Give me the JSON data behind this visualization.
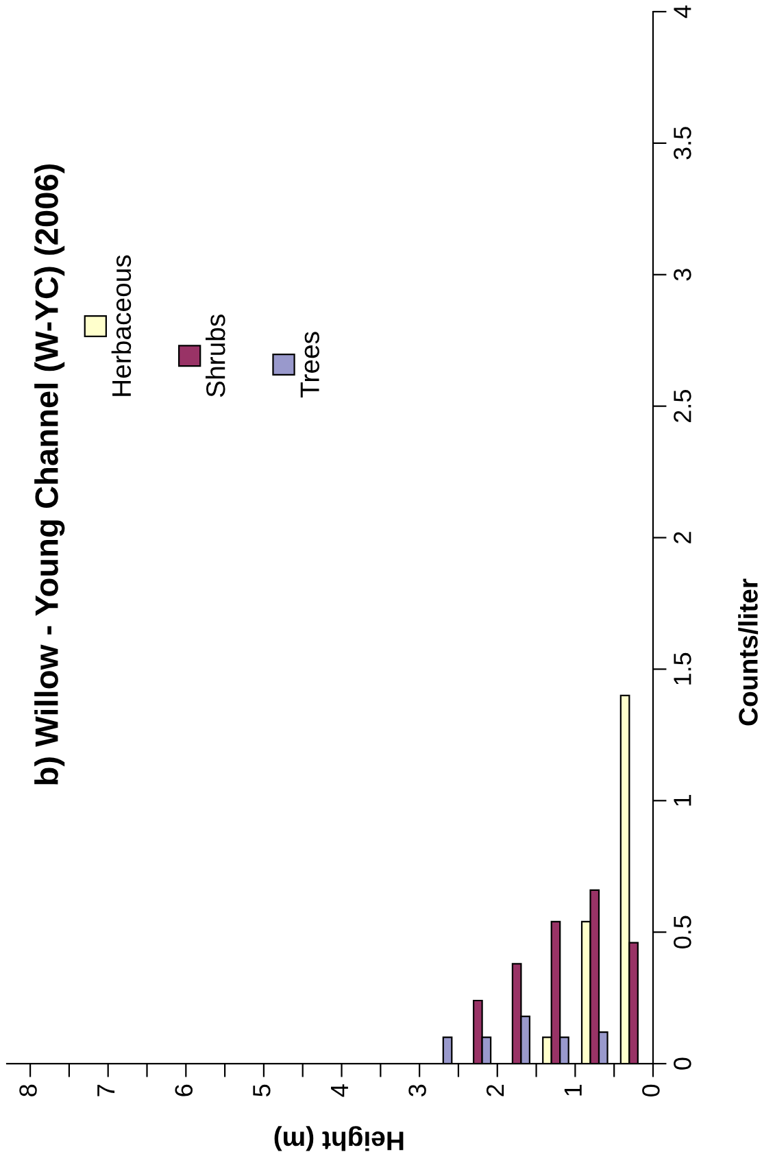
{
  "chart_data": {
    "type": "bar",
    "title": "b) Willow - Young Channel (W-YC) (2006)",
    "xlabel": "Height (m)",
    "ylabel": "Counts/liter",
    "x": [
      0.25,
      0.75,
      1.25,
      1.75,
      2.25,
      2.75
    ],
    "series": [
      {
        "name": "Herbaceous",
        "color": "#ffffcc",
        "values": [
          1.4,
          0.54,
          0.1,
          null,
          null,
          null
        ]
      },
      {
        "name": "Shrubs",
        "color": "#993366",
        "values": [
          0.46,
          0.66,
          0.54,
          0.38,
          0.24,
          null
        ]
      },
      {
        "name": "Trees",
        "color": "#9999cc",
        "values": [
          null,
          0.12,
          0.1,
          0.18,
          0.1,
          0.1
        ]
      }
    ],
    "ylim": [
      0,
      4
    ],
    "yticks": [
      0,
      0.5,
      1,
      1.5,
      2,
      2.5,
      3,
      3.5,
      4
    ],
    "xlim": [
      8.3,
      0
    ],
    "xticks": [
      0,
      {
        "value": 0.5,
        "label": null
      },
      1,
      {
        "value": 1.5,
        "label": null
      },
      2,
      {
        "value": 2.5,
        "label": null
      },
      3,
      {
        "value": 3.5,
        "label": null
      },
      4,
      {
        "value": 4.5,
        "label": null
      },
      5,
      {
        "value": 5.5,
        "label": null
      },
      6,
      {
        "value": 6.5,
        "label": null
      },
      7,
      {
        "value": 7.5,
        "label": null
      },
      8
    ],
    "legend": "top left",
    "grid": false
  }
}
